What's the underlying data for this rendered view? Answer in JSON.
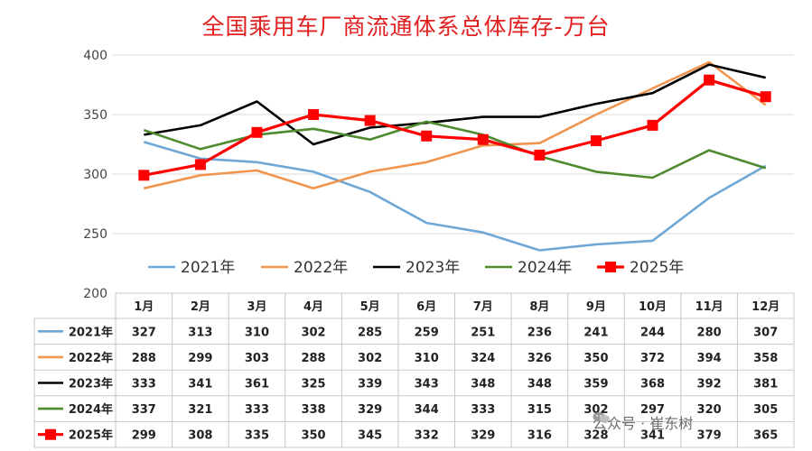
{
  "chart_data": {
    "type": "line",
    "title": "全国乘用车厂商流通体系总体库存-万台",
    "categories": [
      "1月",
      "2月",
      "3月",
      "4月",
      "5月",
      "6月",
      "7月",
      "8月",
      "9月",
      "10月",
      "11月",
      "12月"
    ],
    "ylim": [
      200,
      400
    ],
    "yticks": [
      200,
      250,
      300,
      350,
      400
    ],
    "grid": true,
    "legend_position": "bottom",
    "series": [
      {
        "name": "2021年",
        "color": "#6fa8d6",
        "marker": false,
        "values": [
          327,
          313,
          310,
          302,
          285,
          259,
          251,
          236,
          241,
          244,
          280,
          307
        ]
      },
      {
        "name": "2022年",
        "color": "#f0954f",
        "marker": false,
        "values": [
          288,
          299,
          303,
          288,
          302,
          310,
          324,
          326,
          350,
          372,
          394,
          358
        ]
      },
      {
        "name": "2023年",
        "color": "#000000",
        "marker": false,
        "values": [
          333,
          341,
          361,
          325,
          339,
          343,
          348,
          348,
          359,
          368,
          392,
          381
        ]
      },
      {
        "name": "2024年",
        "color": "#4e8a2e",
        "marker": false,
        "values": [
          337,
          321,
          333,
          338,
          329,
          344,
          333,
          315,
          302,
          297,
          320,
          305
        ]
      },
      {
        "name": "2025年",
        "color": "#ff0000",
        "marker": true,
        "values": [
          299,
          308,
          335,
          350,
          345,
          332,
          329,
          316,
          328,
          341,
          379,
          365
        ]
      }
    ]
  },
  "watermark": {
    "text": "公众号 · 崔东树",
    "icon": "wechat-icon"
  }
}
